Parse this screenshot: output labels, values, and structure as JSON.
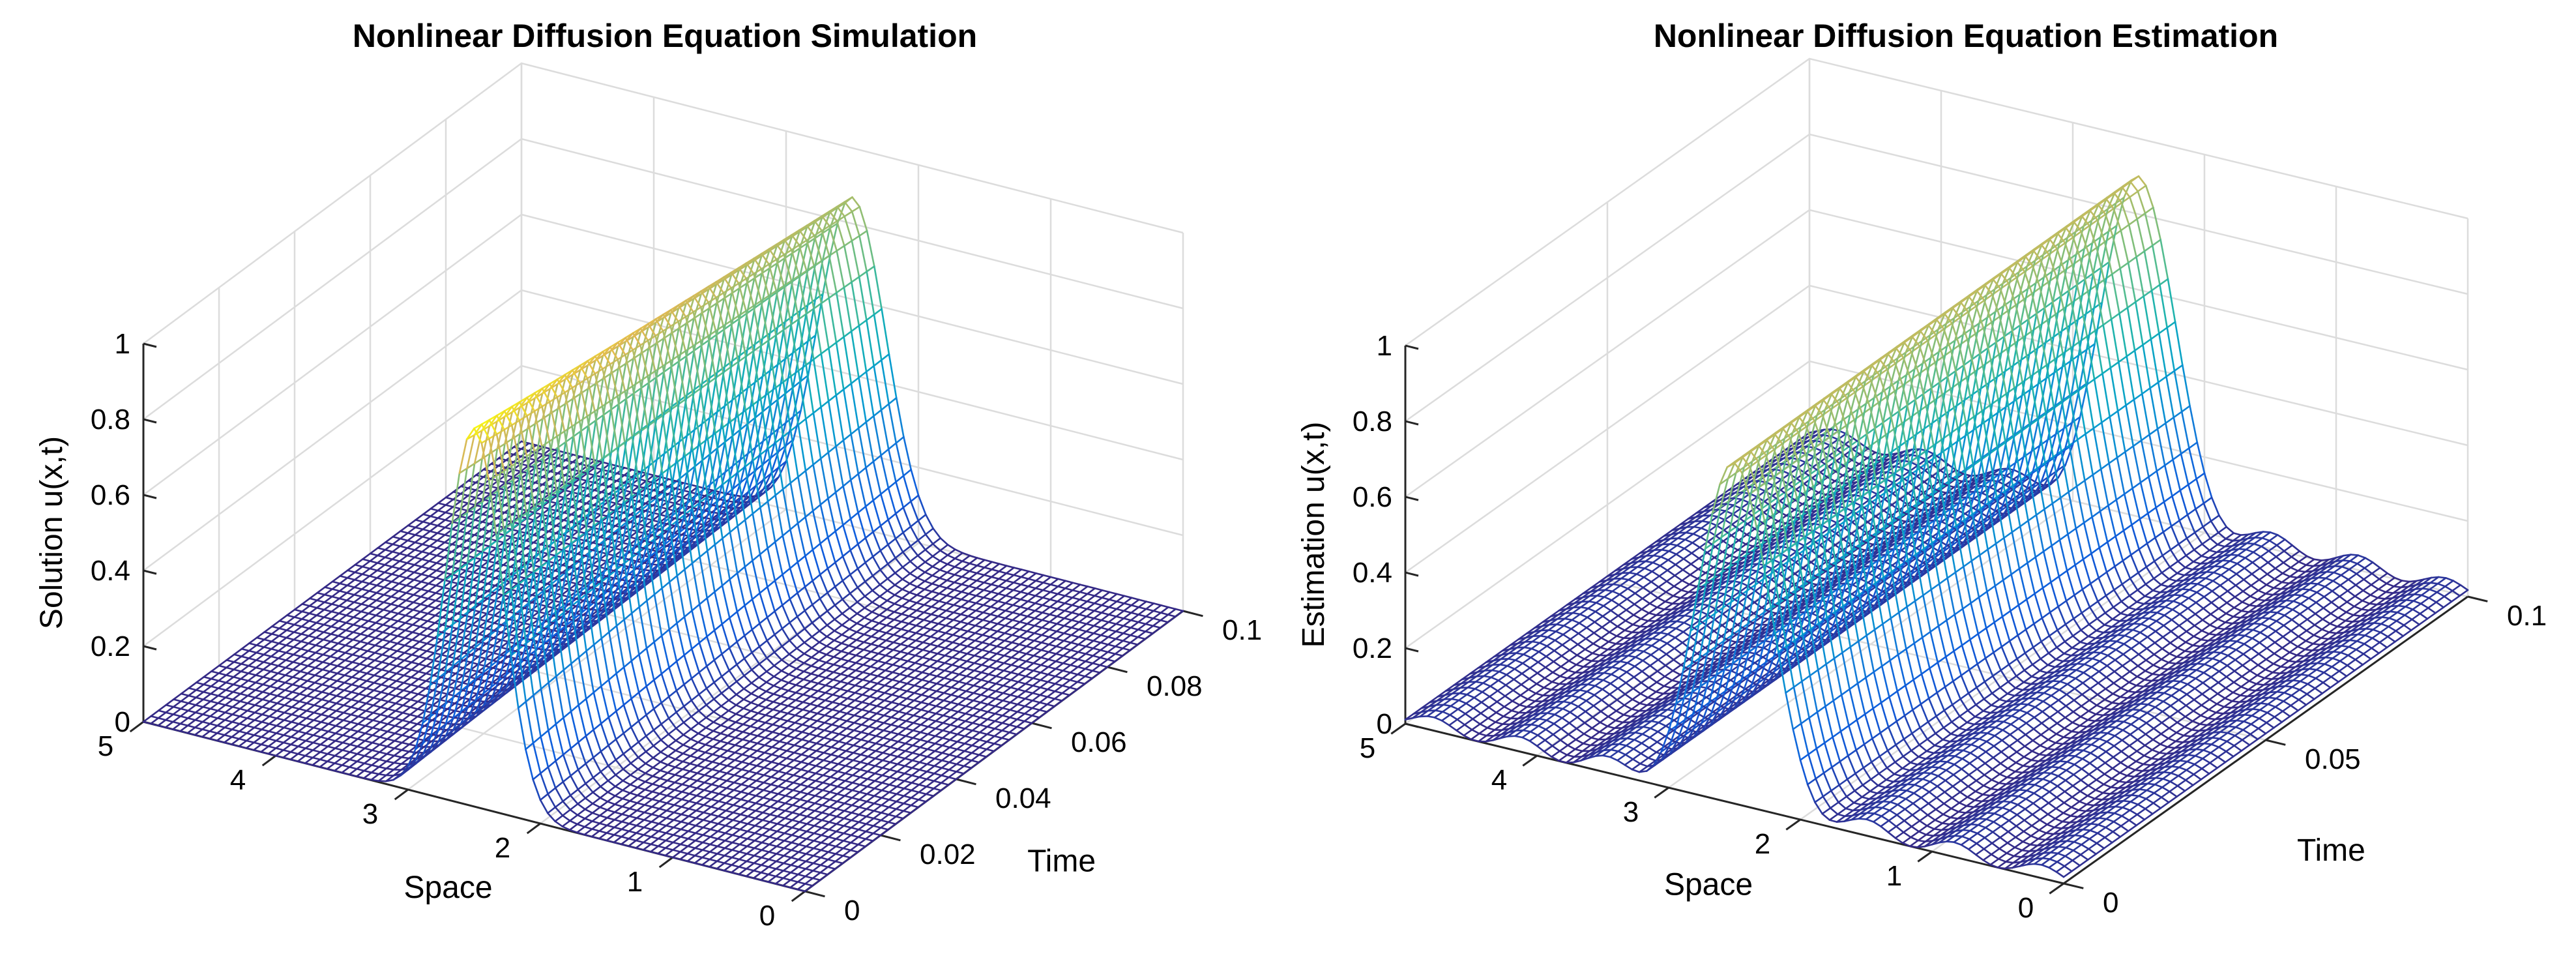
{
  "chart_data": [
    {
      "type": "surface",
      "title": "Nonlinear Diffusion Equation Simulation",
      "xlabel": "Space",
      "ylabel": "Time",
      "zlabel": "Solution u(x,t)",
      "xlim": [
        0,
        5
      ],
      "ylim": [
        0,
        0.1
      ],
      "zlim": [
        0,
        1
      ],
      "x_ticks": [
        "0",
        "1",
        "2",
        "3",
        "4",
        "5"
      ],
      "y_ticks": [
        "0",
        "0.02",
        "0.04",
        "0.06",
        "0.08",
        "0.1"
      ],
      "z_ticks": [
        "0",
        "0.2",
        "0.4",
        "0.6",
        "0.8",
        "1"
      ],
      "y_tick_values": [
        0,
        0.02,
        0.04,
        0.06,
        0.08,
        0.1
      ],
      "grid": true,
      "colormap": "parula",
      "function": "pulse centered at x=2.5 diffusing over time: initial peak 1.0, width ~0.3 widening slowly, peak decays to about 0.87 at t=0.1",
      "surface": {
        "center": 2.5,
        "initial_peak": 1.0,
        "final_peak": 0.87,
        "initial_width": 0.3,
        "final_width": 0.36,
        "ripple": 0
      }
    },
    {
      "type": "surface",
      "title": "Nonlinear Diffusion Equation Estimation",
      "xlabel": "Space",
      "ylabel": "Time",
      "zlabel": "Estimation u(x,t)",
      "xlim": [
        0,
        5
      ],
      "ylim": [
        0,
        0.1
      ],
      "zlim": [
        0,
        1
      ],
      "x_ticks": [
        "0",
        "1",
        "2",
        "3",
        "4",
        "5"
      ],
      "y_ticks": [
        "0",
        "0.05",
        "0.1"
      ],
      "z_ticks": [
        "0",
        "0.2",
        "0.4",
        "0.6",
        "0.8",
        "1"
      ],
      "y_tick_values": [
        0,
        0.05,
        0.1
      ],
      "grid": true,
      "colormap": "parula",
      "function": "estimated pulse centered at x=2.5, peak about 0.9 across time, with small oscillations (about 0.05) away from the pulse",
      "surface": {
        "center": 2.5,
        "initial_peak": 0.9,
        "final_peak": 0.9,
        "initial_width": 0.36,
        "final_width": 0.36,
        "ripple": 0.05
      }
    }
  ]
}
